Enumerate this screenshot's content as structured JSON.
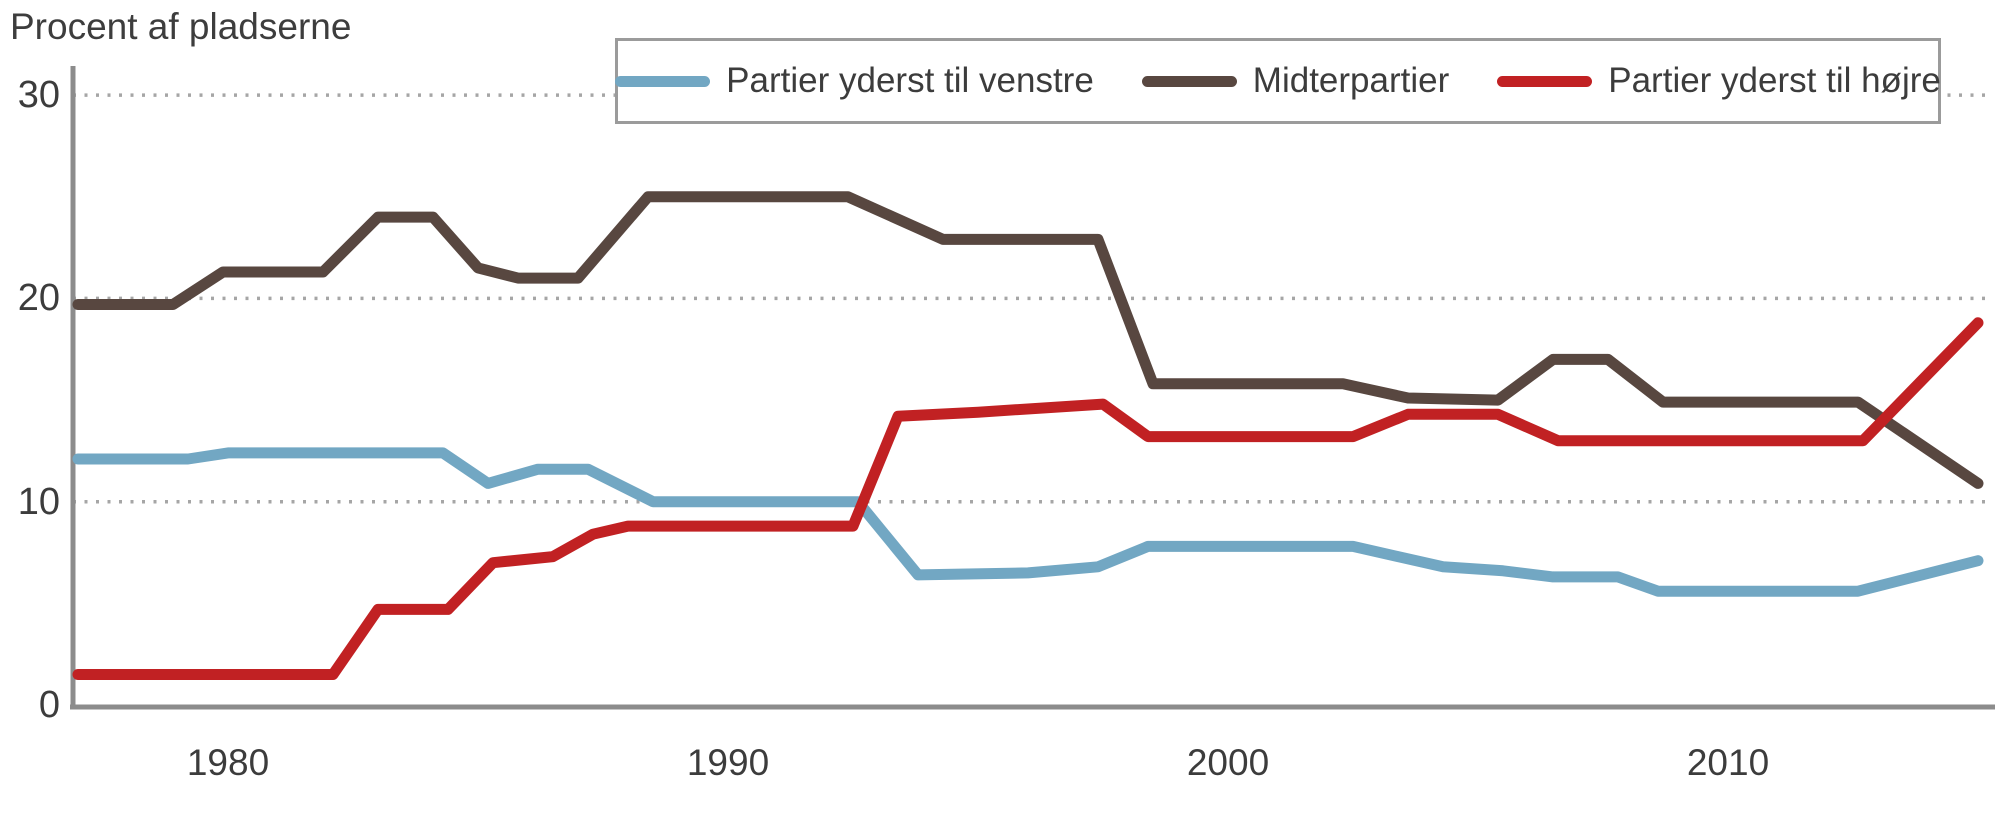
{
  "title": "Procent af pladserne",
  "chart_data": {
    "type": "line",
    "title": "Procent af pladserne",
    "xlabel": "",
    "ylabel": "Procent af pladserne",
    "x_range": [
      1977,
      2015
    ],
    "ylim": [
      0,
      31
    ],
    "x_ticks": [
      1980,
      1990,
      2000,
      2010
    ],
    "y_ticks": [
      0,
      10,
      20,
      30
    ],
    "grid": "dotted horizontal gridlines at 10, 20, 30",
    "legend_position": "top",
    "axis_color": "#8c8c8c",
    "grid_color": "#a6a6a6",
    "text_color": "#3c3c3c",
    "series": [
      {
        "name": "Partier yderst til venstre",
        "color": "#72a7c3",
        "points": [
          [
            1977,
            12.1
          ],
          [
            1979.2,
            12.1
          ],
          [
            1980,
            12.4
          ],
          [
            1984.3,
            12.4
          ],
          [
            1985.2,
            10.9
          ],
          [
            1986.2,
            11.6
          ],
          [
            1987.2,
            11.6
          ],
          [
            1988.5,
            10.0
          ],
          [
            1992.6,
            10.0
          ],
          [
            1993.8,
            6.4
          ],
          [
            1996,
            6.5
          ],
          [
            1997.4,
            6.8
          ],
          [
            1998.4,
            7.8
          ],
          [
            2002.5,
            7.8
          ],
          [
            2004.3,
            6.8
          ],
          [
            2005.5,
            6.6
          ],
          [
            2006.5,
            6.3
          ],
          [
            2007.8,
            6.3
          ],
          [
            2008.6,
            5.6
          ],
          [
            2012.6,
            5.6
          ],
          [
            2015,
            7.1
          ]
        ]
      },
      {
        "name": "Midterpartier",
        "color": "#584740",
        "points": [
          [
            1977,
            19.7
          ],
          [
            1978.9,
            19.7
          ],
          [
            1979.9,
            21.3
          ],
          [
            1981.9,
            21.3
          ],
          [
            1983,
            24.0
          ],
          [
            1984.1,
            24.0
          ],
          [
            1985,
            21.5
          ],
          [
            1985.8,
            21.0
          ],
          [
            1987,
            21.0
          ],
          [
            1988.4,
            25.0
          ],
          [
            1992.4,
            25.0
          ],
          [
            1994.3,
            22.9
          ],
          [
            1997.4,
            22.9
          ],
          [
            1998.5,
            15.8
          ],
          [
            2002.3,
            15.8
          ],
          [
            2003.6,
            15.1
          ],
          [
            2005.4,
            15.0
          ],
          [
            2006.5,
            17.0
          ],
          [
            2007.6,
            17.0
          ],
          [
            2008.7,
            14.9
          ],
          [
            2012.6,
            14.9
          ],
          [
            2015,
            10.9
          ]
        ]
      },
      {
        "name": "Partier yderst til højre",
        "color": "#c12123",
        "points": [
          [
            1977,
            1.5
          ],
          [
            1982.1,
            1.5
          ],
          [
            1983,
            4.7
          ],
          [
            1984.4,
            4.7
          ],
          [
            1985.3,
            7.0
          ],
          [
            1986.5,
            7.3
          ],
          [
            1987.3,
            8.4
          ],
          [
            1988,
            8.8
          ],
          [
            1992.5,
            8.8
          ],
          [
            1993.4,
            14.2
          ],
          [
            1995,
            14.4
          ],
          [
            1997.5,
            14.8
          ],
          [
            1998.4,
            13.2
          ],
          [
            2002.5,
            13.2
          ],
          [
            2003.6,
            14.3
          ],
          [
            2005.4,
            14.3
          ],
          [
            2006.6,
            13.0
          ],
          [
            2012.7,
            13.0
          ],
          [
            2015,
            18.8
          ]
        ]
      }
    ]
  }
}
